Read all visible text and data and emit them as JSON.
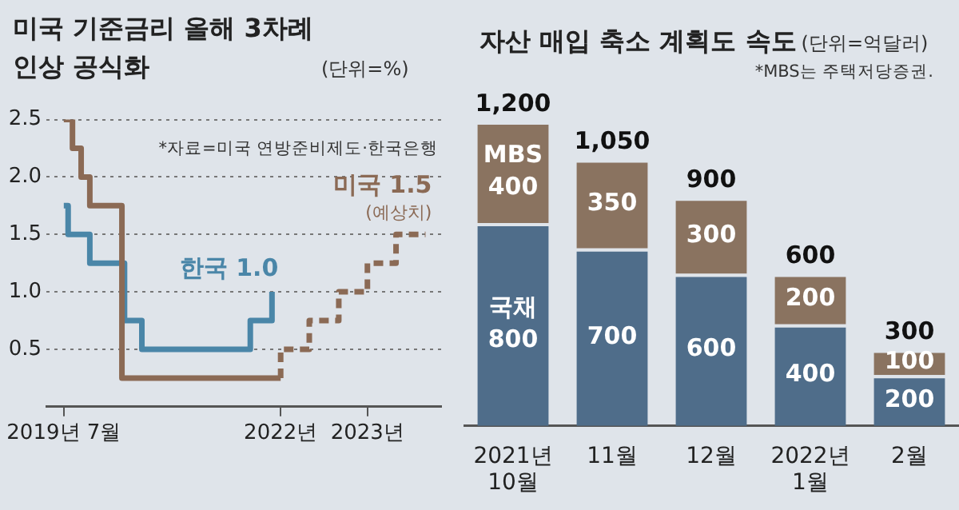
{
  "chart_data": [
    {
      "type": "step",
      "title": "미국 기준금리 올해 3차례 인상 공식화",
      "subtitle": "(단위=%)",
      "xlim": [
        2019.3,
        2023.85
      ],
      "xticks": [
        {
          "value": 2019.5,
          "label": "2019년 7월"
        },
        {
          "value": 2022,
          "label": "2022년"
        },
        {
          "value": 2023,
          "label": "2023년"
        }
      ],
      "ylim": [
        0,
        2.5
      ],
      "yticks": [
        0.5,
        {
          "value": 1,
          "label": "1.0"
        },
        1.5,
        {
          "value": 2,
          "label": "2.0"
        },
        2.5
      ],
      "grid": "y",
      "legend": false,
      "series": [
        {
          "color": "#8b6a55",
          "x": [
            2019.5,
            2019.6,
            2019.7,
            2019.8,
            2020.17,
            2022.0
          ],
          "values": [
            2.5,
            2.25,
            2.0,
            1.75,
            0.25,
            0.25
          ]
        },
        {
          "color": "#8b6a55",
          "line_style": "dashed",
          "x": [
            2022.0,
            2022.0,
            2022.33,
            2022.67,
            2023.0,
            2023.33,
            2023.67
          ],
          "values": [
            0.25,
            0.5,
            0.75,
            1.0,
            1.25,
            1.5,
            1.5
          ]
        },
        {
          "color": "#4a86a8",
          "x": [
            2019.5,
            2019.55,
            2019.8,
            2020.2,
            2020.4,
            2021.65,
            2021.9
          ],
          "values": [
            1.75,
            1.5,
            1.25,
            0.75,
            0.5,
            0.75,
            1.0
          ]
        }
      ],
      "annotations": [
        "*자료=미국 연방준비제도·한국은행",
        {
          "text": "한국 1.0",
          "x": 2021.9,
          "y": 1.0
        },
        {
          "text": "미국 1.5\n(예상치)",
          "x": 2023.67,
          "y": 1.5
        }
      ]
    },
    {
      "type": "bar",
      "stacked": true,
      "title": "자산 매입 축소 계획도 속도",
      "subtitle": "(단위=억달러)",
      "categories": [
        "2021년 10월",
        "11월",
        "12월",
        "2022년 1월",
        "2월"
      ],
      "series": [
        {
          "name": "국채",
          "color": "#4f6d8a",
          "values": [
            800,
            700,
            600,
            400,
            200
          ]
        },
        {
          "name": "MBS",
          "color": "#8a7360",
          "values": [
            400,
            350,
            300,
            200,
            100
          ]
        }
      ],
      "data_labels": true,
      "totals": [
        "1,200",
        "1,050",
        "900",
        "600",
        "300"
      ],
      "tick_labels": "x",
      "legend": false,
      "annotations": [
        "*MBS는 주택저당증권."
      ]
    }
  ]
}
